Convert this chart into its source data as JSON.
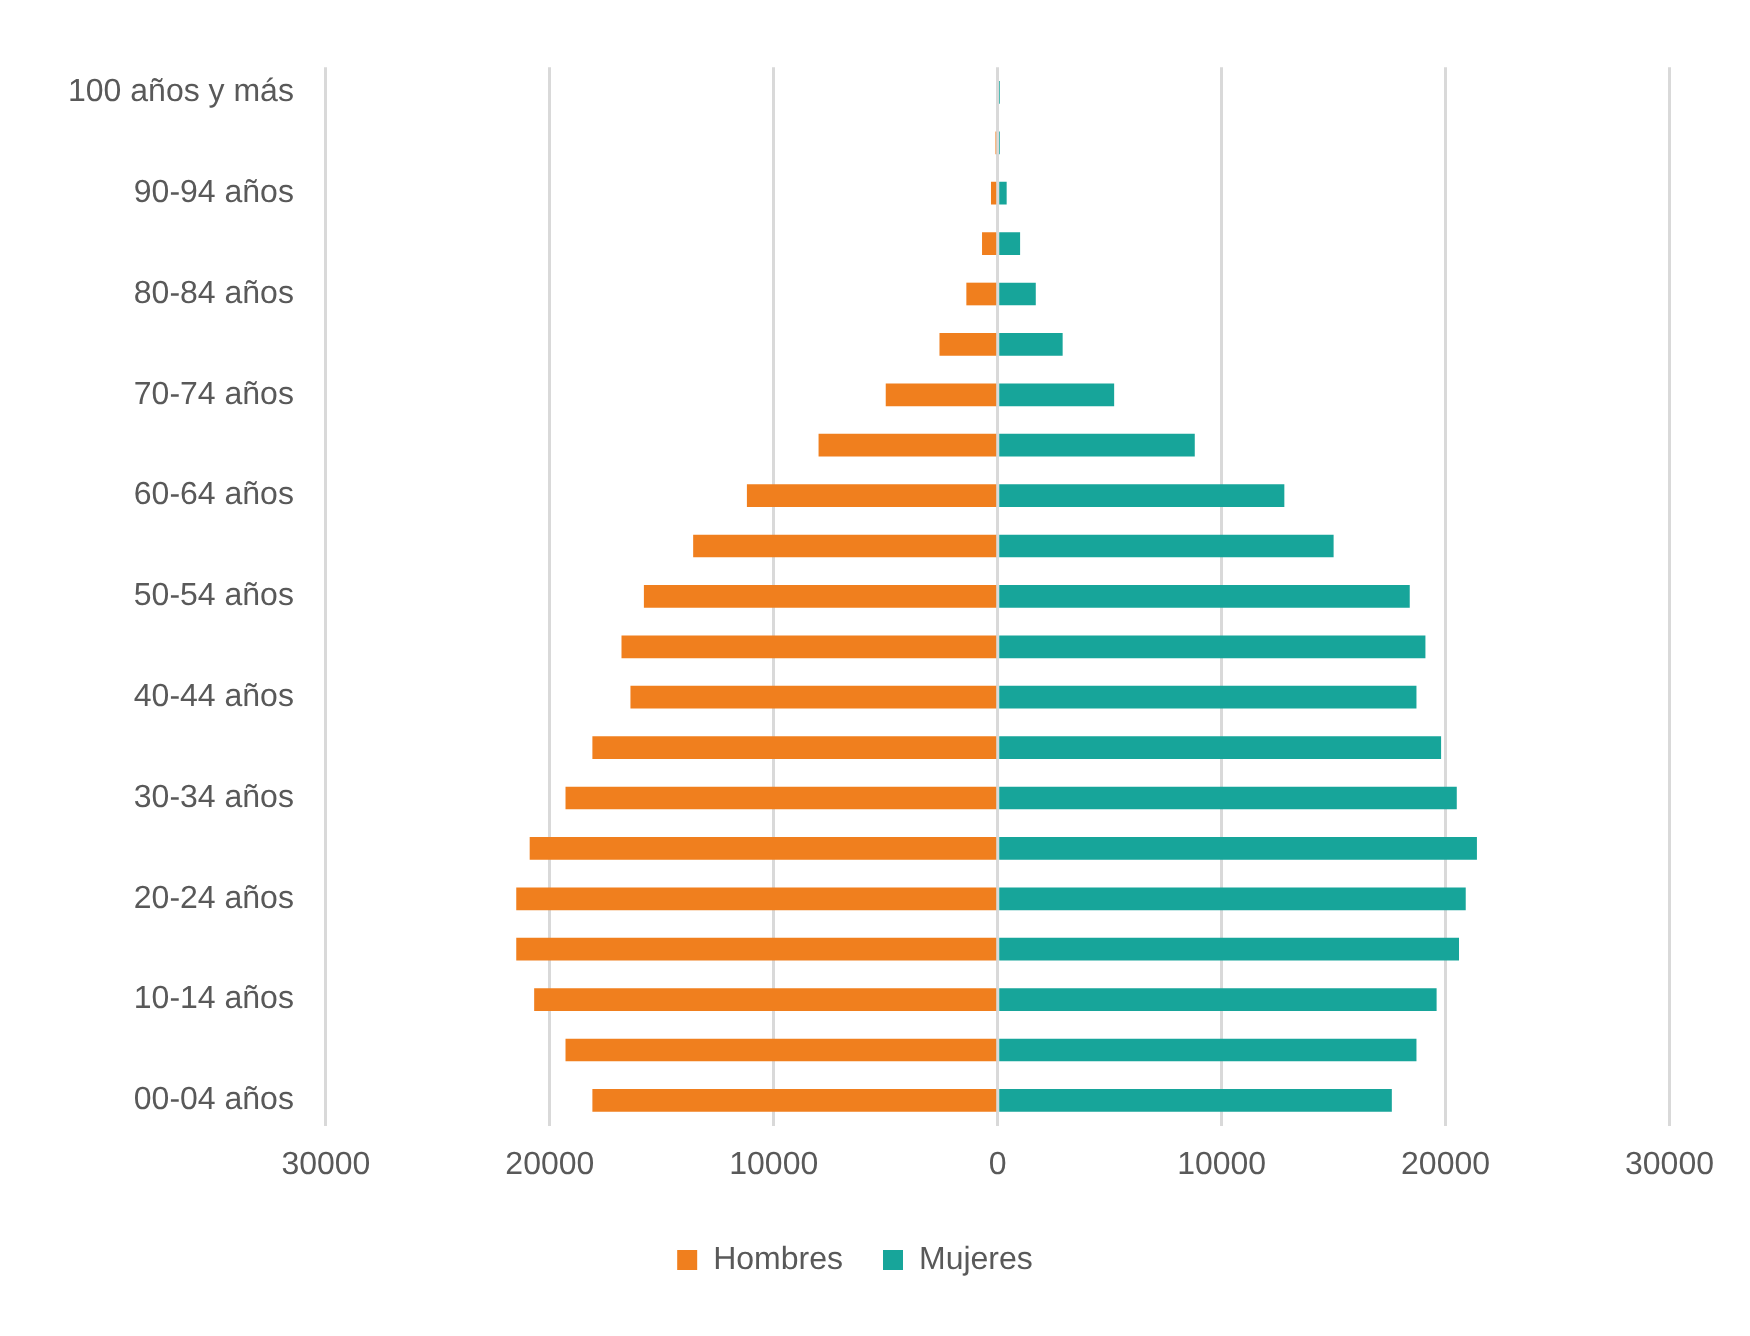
{
  "chart_data": {
    "type": "bar",
    "orientation": "horizontal",
    "stacked": true,
    "categories": [
      "100 años y más",
      null,
      "90-94 años",
      null,
      "80-84 años",
      null,
      "70-74 años",
      null,
      "60-64 años",
      null,
      "50-54 años",
      null,
      "40-44 años",
      null,
      "30-34 años",
      null,
      "20-24 años",
      null,
      "10-14 años",
      null,
      "00-04 años"
    ],
    "series": [
      {
        "name": "Hombres",
        "color": "#f07f1e",
        "values": [
          0,
          -100,
          -300,
          -700,
          -1400,
          -2600,
          -5000,
          -8000,
          -11200,
          -13600,
          -15800,
          -16800,
          -16400,
          -18100,
          -19300,
          -20900,
          -21500,
          -21500,
          -20700,
          -19300,
          -18100
        ]
      },
      {
        "name": "Mujeres",
        "color": "#17a59a",
        "values": [
          100,
          100,
          400,
          1000,
          1700,
          2900,
          5200,
          8800,
          12800,
          15000,
          18400,
          19100,
          18700,
          19800,
          20500,
          21400,
          20900,
          20600,
          19600,
          18700,
          17600
        ]
      }
    ],
    "xlim": [
      -30000,
      30000
    ],
    "xticks": [
      {
        "value": -30000,
        "label": "30000"
      },
      {
        "value": -20000,
        "label": "20000"
      },
      {
        "value": -10000,
        "label": "10000"
      },
      0,
      10000,
      20000,
      30000
    ],
    "grid": "x",
    "legend": "bottom"
  }
}
